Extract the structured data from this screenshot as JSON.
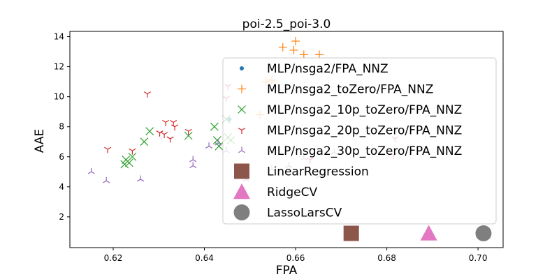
{
  "chart_data": {
    "type": "scatter",
    "title": "poi-2.5_poi-3.0",
    "xlabel": "FPA",
    "ylabel": "AAE",
    "xlim": [
      0.6105,
      0.7055
    ],
    "ylim": [
      -0.05,
      14.35
    ],
    "xticks": [
      "0.62",
      "0.64",
      "0.66",
      "0.68",
      "0.70"
    ],
    "xtick_values": [
      0.62,
      0.64,
      0.66,
      0.68,
      0.7
    ],
    "yticks": [
      "2",
      "4",
      "6",
      "8",
      "10",
      "12",
      "14"
    ],
    "ytick_values": [
      2,
      4,
      6,
      8,
      10,
      12,
      14
    ],
    "grid": false,
    "legend_position": "upper-right",
    "series": [
      {
        "name": "MLP/nsga2/FPA_NNZ",
        "marker": "dot",
        "color": "#1f77b4",
        "points": [
          [
            0.6455,
            8.5
          ]
        ]
      },
      {
        "name": "MLP/nsga2_toZero/FPA_NNZ",
        "marker": "plus",
        "color": "#ff7f0e",
        "points": [
          [
            0.6572,
            13.3
          ],
          [
            0.6596,
            13.1
          ],
          [
            0.66,
            13.7
          ],
          [
            0.6618,
            12.8
          ],
          [
            0.6652,
            12.8
          ],
          [
            0.6535,
            11.0
          ],
          [
            0.6548,
            11.1
          ],
          [
            0.6522,
            8.8
          ]
        ]
      },
      {
        "name": "MLP/nsga2_10p_toZero/FPA_NNZ",
        "marker": "x",
        "color": "#2ca02c",
        "points": [
          [
            0.6225,
            5.5
          ],
          [
            0.6228,
            5.8
          ],
          [
            0.6235,
            5.6
          ],
          [
            0.6242,
            6.0
          ],
          [
            0.6268,
            7.0
          ],
          [
            0.628,
            7.7
          ],
          [
            0.6365,
            7.4
          ],
          [
            0.6422,
            8.0
          ],
          [
            0.6428,
            7.1
          ],
          [
            0.6432,
            6.7
          ],
          [
            0.6448,
            8.5
          ],
          [
            0.6452,
            7.3
          ],
          [
            0.6458,
            7.1
          ]
        ]
      },
      {
        "name": "MLP/nsga2_20p_toZero/FPA_NNZ",
        "marker": "tri_down",
        "color": "#d62728",
        "points": [
          [
            0.6188,
            6.5
          ],
          [
            0.6242,
            6.4
          ],
          [
            0.6275,
            10.2
          ],
          [
            0.6302,
            7.6
          ],
          [
            0.6312,
            7.5
          ],
          [
            0.6315,
            8.3
          ],
          [
            0.6325,
            7.2
          ],
          [
            0.6332,
            8.3
          ],
          [
            0.6335,
            8.0
          ],
          [
            0.6365,
            7.7
          ],
          [
            0.6448,
            9.9
          ],
          [
            0.6452,
            10.7
          ],
          [
            0.6632,
            5.8
          ],
          [
            0.6818,
            7.2
          ],
          [
            0.6815,
            6.1
          ]
        ]
      },
      {
        "name": "MLP/nsga2_30p_toZero/FPA_NNZ",
        "marker": "tri_up",
        "color": "#9467bd",
        "points": [
          [
            0.6152,
            5.0
          ],
          [
            0.6185,
            4.4
          ],
          [
            0.626,
            4.5
          ],
          [
            0.6375,
            5.4
          ],
          [
            0.6375,
            5.8
          ],
          [
            0.641,
            6.7
          ],
          [
            0.643,
            6.9
          ],
          [
            0.6448,
            6.4
          ],
          [
            0.6492,
            4.5
          ],
          [
            0.6548,
            5.2
          ],
          [
            0.6585,
            5.4
          ],
          [
            0.6652,
            4.7
          ],
          [
            0.6618,
            5.9
          ],
          [
            0.6685,
            6.3
          ]
        ]
      },
      {
        "name": "LinearRegression",
        "marker": "square",
        "color": "#8c564b",
        "points": [
          [
            0.6722,
            0.9
          ]
        ]
      },
      {
        "name": "RidgeCV",
        "marker": "triangle",
        "color": "#e377c2",
        "points": [
          [
            0.6892,
            0.9
          ]
        ]
      },
      {
        "name": "LassoLarsCV",
        "marker": "circle",
        "color": "#7f7f7f",
        "points": [
          [
            0.7012,
            0.9
          ]
        ]
      }
    ]
  }
}
